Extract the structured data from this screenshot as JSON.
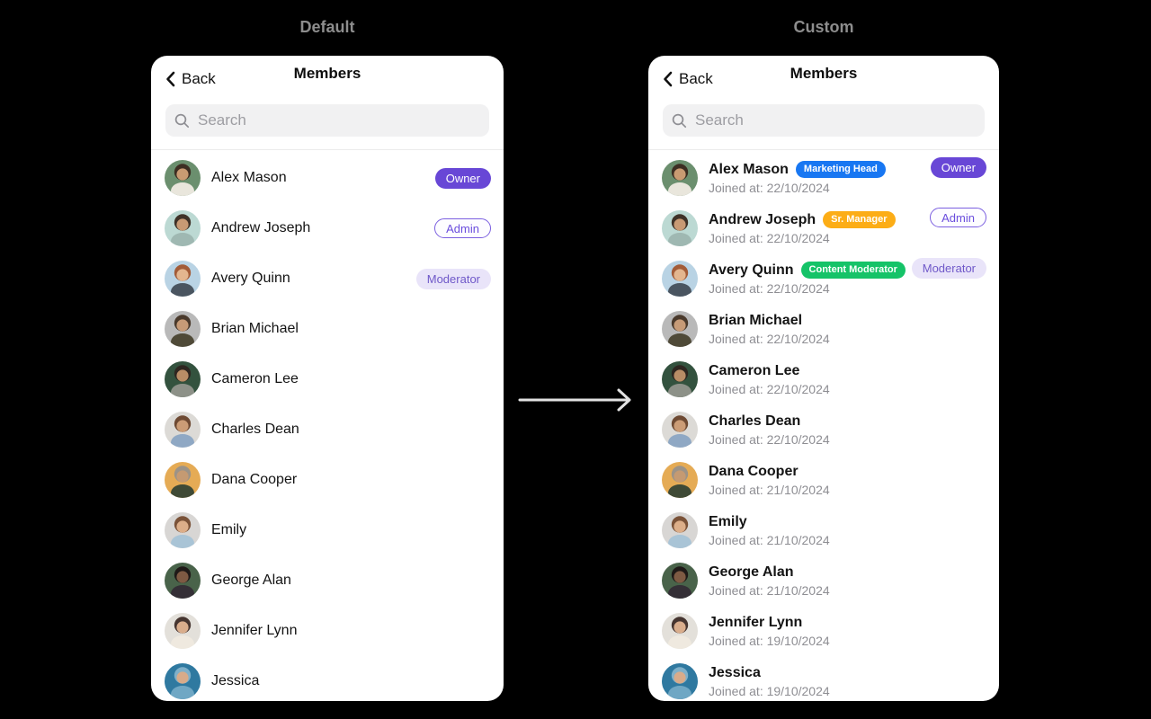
{
  "colors": {
    "page_bg": "#000000",
    "panel_bg": "#ffffff",
    "section_title": "#8d8d8d",
    "arrow": "#e2e2e2",
    "back_text": "#111111",
    "name_text": "#141414",
    "joined_text": "#8e8e93",
    "search_bg": "#f1f1f2",
    "search_placeholder": "#9d9da2",
    "search_icon": "#8e8e93",
    "divider": "#ececec",
    "owner_bg": "#6847d6",
    "owner_text": "#ffffff",
    "admin_bg": "#fdfdff",
    "admin_text": "#6a4ddd",
    "admin_border": "#7b5fe0",
    "moderator_bg": "#e9e4f9",
    "moderator_text": "#6f58c9",
    "badge_text": "#ffffff"
  },
  "panels": [
    {
      "variant": "default",
      "title": "Default",
      "header": {
        "back_label": "Back",
        "title": "Members"
      },
      "search_placeholder": "Search"
    },
    {
      "variant": "custom",
      "title": "Custom",
      "header": {
        "back_label": "Back",
        "title": "Members"
      },
      "search_placeholder": "Search"
    }
  ],
  "members": [
    {
      "name": "Alex Mason",
      "role": "Owner",
      "designation": "Marketing Head",
      "designation_color": "#1877f2",
      "joined": "Joined at: 22/10/2024",
      "avatar": {
        "bg": "#6b8f6e",
        "hair": "#3d2e22",
        "skin": "#c99b72",
        "top": "#e9e6dc"
      }
    },
    {
      "name": "Andrew Joseph",
      "role": "Admin",
      "designation": "Sr. Manager",
      "designation_color": "#fcad16",
      "joined": "Joined at: 22/10/2024",
      "avatar": {
        "bg": "#bcd9d3",
        "hair": "#3f3228",
        "skin": "#c89a74",
        "top": "#9fb8b2"
      }
    },
    {
      "name": "Avery Quinn",
      "role": "Moderator",
      "designation": "Content Moderator",
      "designation_color": "#15c368",
      "joined": "Joined at: 22/10/2024",
      "avatar": {
        "bg": "#b9d3e4",
        "hair": "#a35c38",
        "skin": "#e3b68f",
        "top": "#4a5560"
      }
    },
    {
      "name": "Brian Michael",
      "role": "",
      "designation": "",
      "designation_color": "",
      "joined": "Joined at: 22/10/2024",
      "avatar": {
        "bg": "#b9b9b9",
        "hair": "#4a3a2c",
        "skin": "#c79b77",
        "top": "#4f4a38"
      }
    },
    {
      "name": "Cameron Lee",
      "role": "",
      "designation": "",
      "designation_color": "",
      "joined": "Joined at: 22/10/2024",
      "avatar": {
        "bg": "#33523e",
        "hair": "#2e2620",
        "skin": "#b98d66",
        "top": "#8d9188"
      }
    },
    {
      "name": "Charles Dean",
      "role": "",
      "designation": "",
      "designation_color": "",
      "joined": "Joined at: 22/10/2024",
      "avatar": {
        "bg": "#dcdad6",
        "hair": "#6e4a33",
        "skin": "#cb9c76",
        "top": "#8fa8c4"
      }
    },
    {
      "name": "Dana Cooper",
      "role": "",
      "designation": "",
      "designation_color": "",
      "joined": "Joined at: 21/10/2024",
      "avatar": {
        "bg": "#e5ab55",
        "hair": "#9c9387",
        "skin": "#c59a72",
        "top": "#3f4a36"
      }
    },
    {
      "name": "Emily",
      "role": "",
      "designation": "",
      "designation_color": "",
      "joined": "Joined at: 21/10/2024",
      "avatar": {
        "bg": "#d8d6d4",
        "hair": "#7a5238",
        "skin": "#dcae89",
        "top": "#a9c4d6"
      }
    },
    {
      "name": "George Alan",
      "role": "",
      "designation": "",
      "designation_color": "",
      "joined": "Joined at: 21/10/2024",
      "avatar": {
        "bg": "#49634a",
        "hair": "#1f1a18",
        "skin": "#7e5a43",
        "top": "#342f36"
      }
    },
    {
      "name": "Jennifer Lynn",
      "role": "",
      "designation": "",
      "designation_color": "",
      "joined": "Joined at: 19/10/2024",
      "avatar": {
        "bg": "#e3e0da",
        "hair": "#463530",
        "skin": "#d9ad8c",
        "top": "#efe9df"
      }
    },
    {
      "name": "Jessica",
      "role": "",
      "designation": "",
      "designation_color": "",
      "joined": "Joined at: 19/10/2024",
      "avatar": {
        "bg": "#2f79a0",
        "hair": "#7fb0c9",
        "skin": "#d8ab8a",
        "top": "#6fa7c4"
      }
    }
  ]
}
